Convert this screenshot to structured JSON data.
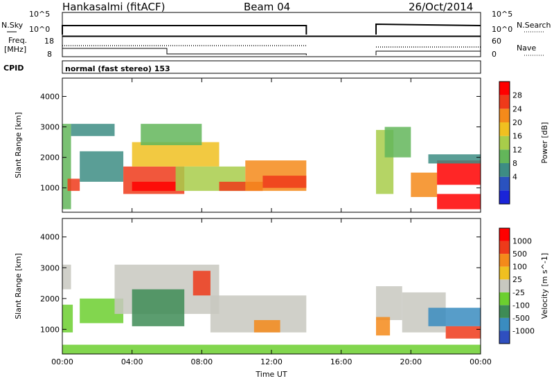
{
  "header": {
    "station": "Hankasalmi (fitACF)",
    "beam": "Beam 04",
    "date": "26/Oct/2014"
  },
  "panels": {
    "nsky_label": "N.Sky",
    "nsearch_label": "N.Search",
    "nsky_ticks": [
      "10^5",
      "10^0"
    ],
    "nsearch_ticks": [
      "10^5",
      "10^0"
    ],
    "freq_label_line1": "Freq.",
    "freq_label_line2": "[MHz]",
    "freq_ticks": [
      "18",
      "8"
    ],
    "nave_label": "Nave",
    "nave_ticks": [
      "60",
      "0"
    ],
    "cpid_label": "CPID",
    "cpid_text": "normal (fast stereo) 153"
  },
  "chart_data": [
    {
      "type": "heatmap",
      "title": "",
      "xlabel": "Time UT",
      "ylabel": "Slant Range [km]",
      "x_ticks": [
        "00:00",
        "04:00",
        "08:00",
        "12:00",
        "16:00",
        "20:00",
        "00:00"
      ],
      "xlim_hours": [
        0,
        24
      ],
      "ylim": [
        200,
        4600
      ],
      "y_ticks": [
        1000,
        2000,
        3000,
        4000
      ],
      "colorbar": {
        "label": "Power [dB]",
        "ticks": [
          "28",
          "24",
          "20",
          "16",
          "12",
          "8",
          "4"
        ],
        "range": [
          0,
          30
        ],
        "colors": [
          "#1a24d8",
          "#2a52bf",
          "#3d8d84",
          "#63b65a",
          "#a8cd4a",
          "#f0c020",
          "#f48a1a",
          "#ee3a1a",
          "#ff0000"
        ]
      },
      "data_gap_hours": [
        14.0,
        18.0
      ],
      "regions": [
        {
          "t0": 0.0,
          "t1": 0.5,
          "r0": 300,
          "r1": 3100,
          "level": 3
        },
        {
          "t0": 0.3,
          "t1": 1.0,
          "r0": 900,
          "r1": 1300,
          "level": 7
        },
        {
          "t0": 0.5,
          "t1": 3.0,
          "r0": 2700,
          "r1": 3100,
          "level": 2
        },
        {
          "t0": 1.0,
          "t1": 3.5,
          "r0": 1200,
          "r1": 2200,
          "level": 2
        },
        {
          "t0": 3.5,
          "t1": 7.0,
          "r0": 800,
          "r1": 1700,
          "level": 7
        },
        {
          "t0": 4.0,
          "t1": 6.5,
          "r0": 900,
          "r1": 1200,
          "level": 8
        },
        {
          "t0": 4.0,
          "t1": 9.0,
          "r0": 1700,
          "r1": 2500,
          "level": 5
        },
        {
          "t0": 4.5,
          "t1": 8.0,
          "r0": 2400,
          "r1": 3100,
          "level": 3
        },
        {
          "t0": 6.5,
          "t1": 10.5,
          "r0": 900,
          "r1": 1700,
          "level": 4
        },
        {
          "t0": 9.0,
          "t1": 11.5,
          "r0": 900,
          "r1": 1200,
          "level": 7
        },
        {
          "t0": 10.5,
          "t1": 14.0,
          "r0": 900,
          "r1": 1900,
          "level": 6
        },
        {
          "t0": 11.5,
          "t1": 14.0,
          "r0": 1000,
          "r1": 1400,
          "level": 7
        },
        {
          "t0": 18.0,
          "t1": 19.0,
          "r0": 800,
          "r1": 2900,
          "level": 4
        },
        {
          "t0": 18.5,
          "t1": 20.0,
          "r0": 2000,
          "r1": 3000,
          "level": 3
        },
        {
          "t0": 20.0,
          "t1": 21.5,
          "r0": 700,
          "r1": 1500,
          "level": 6
        },
        {
          "t0": 21.5,
          "t1": 24.0,
          "r0": 300,
          "r1": 800,
          "level": 8
        },
        {
          "t0": 21.5,
          "t1": 24.0,
          "r0": 1100,
          "r1": 1900,
          "level": 8
        },
        {
          "t0": 21.0,
          "t1": 24.0,
          "r0": 1800,
          "r1": 2100,
          "level": 2
        }
      ]
    },
    {
      "type": "heatmap",
      "title": "",
      "xlabel": "Time UT",
      "ylabel": "Slant Range [km]",
      "x_ticks": [
        "00:00",
        "04:00",
        "08:00",
        "12:00",
        "16:00",
        "20:00",
        "00:00"
      ],
      "xlim_hours": [
        0,
        24
      ],
      "ylim": [
        200,
        4600
      ],
      "y_ticks": [
        1000,
        2000,
        3000,
        4000
      ],
      "colorbar": {
        "label": "Velocity [m s^-1]",
        "ticks": [
          "1000",
          "500",
          "100",
          "25",
          "-25",
          "-100",
          "-500",
          "-1000"
        ],
        "colors": [
          "#2f4fbf",
          "#3a8cc0",
          "#3e8c56",
          "#6ccf2f",
          "#c8c8c0",
          "#f0c020",
          "#f48a1a",
          "#ee3a1a",
          "#ff0000"
        ]
      },
      "data_gap_hours": [
        14.0,
        18.0
      ],
      "regions": [
        {
          "t0": 0.0,
          "t1": 0.5,
          "r0": 2300,
          "r1": 3100,
          "level": 4
        },
        {
          "t0": 0.0,
          "t1": 0.6,
          "r0": 900,
          "r1": 1800,
          "level": 3
        },
        {
          "t0": 1.0,
          "t1": 3.5,
          "r0": 1200,
          "r1": 2000,
          "level": 3
        },
        {
          "t0": 3.0,
          "t1": 9.0,
          "r0": 1500,
          "r1": 3100,
          "level": 4
        },
        {
          "t0": 4.0,
          "t1": 7.0,
          "r0": 1100,
          "r1": 2300,
          "level": 2
        },
        {
          "t0": 7.5,
          "t1": 8.5,
          "r0": 2100,
          "r1": 2900,
          "level": 7
        },
        {
          "t0": 8.5,
          "t1": 14.0,
          "r0": 900,
          "r1": 2100,
          "level": 4
        },
        {
          "t0": 11.0,
          "t1": 12.5,
          "r0": 900,
          "r1": 1300,
          "level": 6
        },
        {
          "t0": 18.0,
          "t1": 19.5,
          "r0": 1300,
          "r1": 2400,
          "level": 4
        },
        {
          "t0": 18.0,
          "t1": 18.8,
          "r0": 800,
          "r1": 1400,
          "level": 6
        },
        {
          "t0": 19.5,
          "t1": 22.0,
          "r0": 900,
          "r1": 2200,
          "level": 4
        },
        {
          "t0": 21.0,
          "t1": 24.0,
          "r0": 1100,
          "r1": 1700,
          "level": 1
        },
        {
          "t0": 22.0,
          "t1": 24.0,
          "r0": 700,
          "r1": 1100,
          "level": 7
        },
        {
          "t0": 0.0,
          "t1": 24.0,
          "r0": 200,
          "r1": 500,
          "level": 3
        }
      ]
    }
  ]
}
